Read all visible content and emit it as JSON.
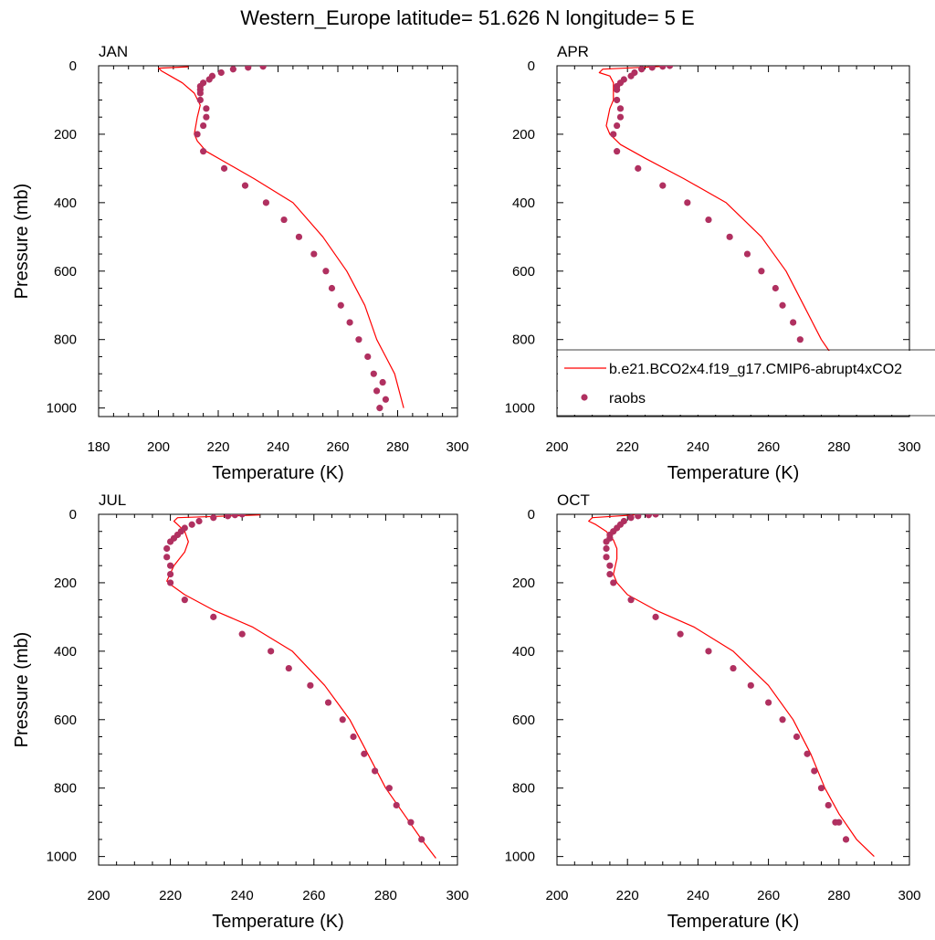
{
  "figure": {
    "title": "Western_Europe  latitude= 51.626 N longitude= 5 E"
  },
  "legend": {
    "model_label": "b.e21.BCO2x4.f19_g17.CMIP6-abrupt4xCO2",
    "obs_label": "raobs",
    "placement": "inside APR panel, lower right"
  },
  "colors": {
    "model_line": "#ff0000",
    "obs_marker": "#b03060",
    "axis": "#000000",
    "background": "#ffffff"
  },
  "chart_data": [
    {
      "type": "line",
      "panel": "JAN",
      "title": "JAN",
      "xlabel": "Temperature (K)",
      "ylabel": "Pressure (mb)",
      "xlim": [
        180,
        300
      ],
      "ylim": [
        1025,
        0
      ],
      "xticks": [
        180,
        200,
        220,
        240,
        260,
        280,
        300
      ],
      "yticks": [
        0,
        200,
        400,
        600,
        800,
        1000
      ],
      "series": [
        {
          "name": "b.e21.BCO2x4.f19_g17.CMIP6-abrupt4xCO2",
          "style": "line",
          "x": [
            210,
            200,
            201,
            204,
            208,
            212,
            214,
            213,
            212,
            213,
            216,
            222,
            232,
            245,
            255,
            263,
            269,
            273,
            276,
            279,
            282
          ],
          "y": [
            3,
            7,
            15,
            30,
            50,
            80,
            115,
            150,
            200,
            220,
            250,
            280,
            330,
            400,
            500,
            600,
            700,
            800,
            850,
            900,
            1000
          ]
        },
        {
          "name": "raobs",
          "style": "scatter",
          "x": [
            235,
            235,
            230,
            225,
            221,
            218,
            217,
            215,
            214,
            214,
            214,
            214,
            216,
            216,
            213,
            215,
            215,
            222,
            229,
            236,
            242,
            247,
            252,
            256,
            258,
            261,
            264,
            267,
            270,
            272,
            273,
            274,
            275,
            276
          ],
          "y": [
            0,
            2,
            5,
            10,
            20,
            30,
            40,
            50,
            60,
            70,
            80,
            100,
            125,
            150,
            200,
            175,
            250,
            300,
            350,
            400,
            450,
            500,
            550,
            600,
            650,
            700,
            750,
            800,
            850,
            900,
            950,
            1000,
            925,
            975
          ]
        }
      ]
    },
    {
      "type": "line",
      "panel": "APR",
      "title": "APR",
      "xlabel": "Temperature (K)",
      "ylabel": "",
      "xlim": [
        200,
        300
      ],
      "ylim": [
        1025,
        0
      ],
      "xticks": [
        200,
        220,
        240,
        260,
        280,
        300
      ],
      "yticks": [
        0,
        200,
        400,
        600,
        800,
        1000
      ],
      "series": [
        {
          "name": "b.e21.BCO2x4.f19_g17.CMIP6-abrupt4xCO2",
          "style": "line",
          "x": [
            230,
            213,
            212,
            215,
            216,
            216,
            216,
            215,
            214,
            215,
            218,
            225,
            236,
            248,
            258,
            265,
            270,
            275,
            280,
            283,
            286
          ],
          "y": [
            2,
            10,
            20,
            30,
            50,
            75,
            100,
            125,
            175,
            200,
            230,
            270,
            330,
            400,
            500,
            600,
            700,
            800,
            875,
            950,
            1000
          ]
        },
        {
          "name": "raobs",
          "style": "scatter",
          "x": [
            232,
            230,
            227,
            224,
            222,
            221,
            219,
            218,
            217,
            217,
            217,
            218,
            218,
            217,
            216,
            217,
            223,
            230,
            237,
            243,
            249,
            254,
            258,
            262,
            264,
            267,
            269,
            272,
            274,
            277,
            280
          ],
          "y": [
            0,
            2,
            5,
            10,
            20,
            30,
            40,
            50,
            60,
            70,
            100,
            125,
            150,
            175,
            200,
            250,
            300,
            350,
            400,
            450,
            500,
            550,
            600,
            650,
            700,
            750,
            800,
            850,
            900,
            900,
            950
          ]
        }
      ]
    },
    {
      "type": "line",
      "panel": "JUL",
      "title": "JUL",
      "xlabel": "Temperature (K)",
      "ylabel": "Pressure (mb)",
      "xlim": [
        200,
        300
      ],
      "ylim": [
        1025,
        0
      ],
      "xticks": [
        200,
        220,
        240,
        260,
        280,
        300
      ],
      "yticks": [
        0,
        200,
        400,
        600,
        800,
        1000
      ],
      "series": [
        {
          "name": "b.e21.BCO2x4.f19_g17.CMIP6-abrupt4xCO2",
          "style": "line",
          "x": [
            245,
            222,
            221,
            222,
            224,
            225,
            224,
            221,
            219,
            220,
            224,
            232,
            243,
            254,
            263,
            270,
            275,
            280,
            285,
            290,
            294
          ],
          "y": [
            2,
            10,
            20,
            30,
            50,
            80,
            110,
            150,
            195,
            205,
            235,
            280,
            330,
            400,
            500,
            600,
            700,
            800,
            875,
            950,
            1005
          ]
        },
        {
          "name": "raobs",
          "style": "scatter",
          "x": [
            240,
            238,
            236,
            232,
            228,
            226,
            224,
            223,
            222,
            221,
            220,
            219,
            219,
            220,
            220,
            220,
            224,
            232,
            240,
            248,
            253,
            259,
            264,
            268,
            271,
            274,
            277,
            281,
            283,
            287,
            290
          ],
          "y": [
            0,
            2,
            5,
            10,
            20,
            30,
            40,
            50,
            60,
            70,
            80,
            100,
            125,
            150,
            175,
            200,
            250,
            300,
            350,
            400,
            450,
            500,
            550,
            600,
            650,
            700,
            750,
            800,
            850,
            900,
            950
          ]
        }
      ]
    },
    {
      "type": "line",
      "panel": "OCT",
      "title": "OCT",
      "xlabel": "Temperature (K)",
      "ylabel": "",
      "xlim": [
        200,
        300
      ],
      "ylim": [
        1025,
        0
      ],
      "xticks": [
        200,
        220,
        240,
        260,
        280,
        300
      ],
      "yticks": [
        0,
        200,
        400,
        600,
        800,
        1000
      ],
      "series": [
        {
          "name": "b.e21.BCO2x4.f19_g17.CMIP6-abrupt4xCO2",
          "style": "line",
          "x": [
            222,
            210,
            209,
            211,
            214,
            216,
            217,
            217,
            216,
            217,
            220,
            228,
            239,
            250,
            260,
            267,
            272,
            276,
            280,
            285,
            290
          ],
          "y": [
            2,
            10,
            20,
            30,
            50,
            75,
            100,
            130,
            175,
            200,
            235,
            280,
            330,
            400,
            500,
            600,
            700,
            800,
            875,
            950,
            1000
          ]
        },
        {
          "name": "raobs",
          "style": "scatter",
          "x": [
            228,
            226,
            223,
            221,
            219,
            218,
            217,
            216,
            215,
            215,
            214,
            214,
            214,
            215,
            215,
            216,
            221,
            228,
            235,
            243,
            250,
            255,
            260,
            264,
            268,
            271,
            273,
            275,
            277,
            279,
            280,
            282
          ],
          "y": [
            0,
            2,
            5,
            10,
            20,
            30,
            40,
            50,
            60,
            70,
            80,
            100,
            125,
            150,
            175,
            200,
            250,
            300,
            350,
            400,
            450,
            500,
            550,
            600,
            650,
            700,
            750,
            800,
            850,
            900,
            900,
            950
          ]
        }
      ]
    }
  ]
}
